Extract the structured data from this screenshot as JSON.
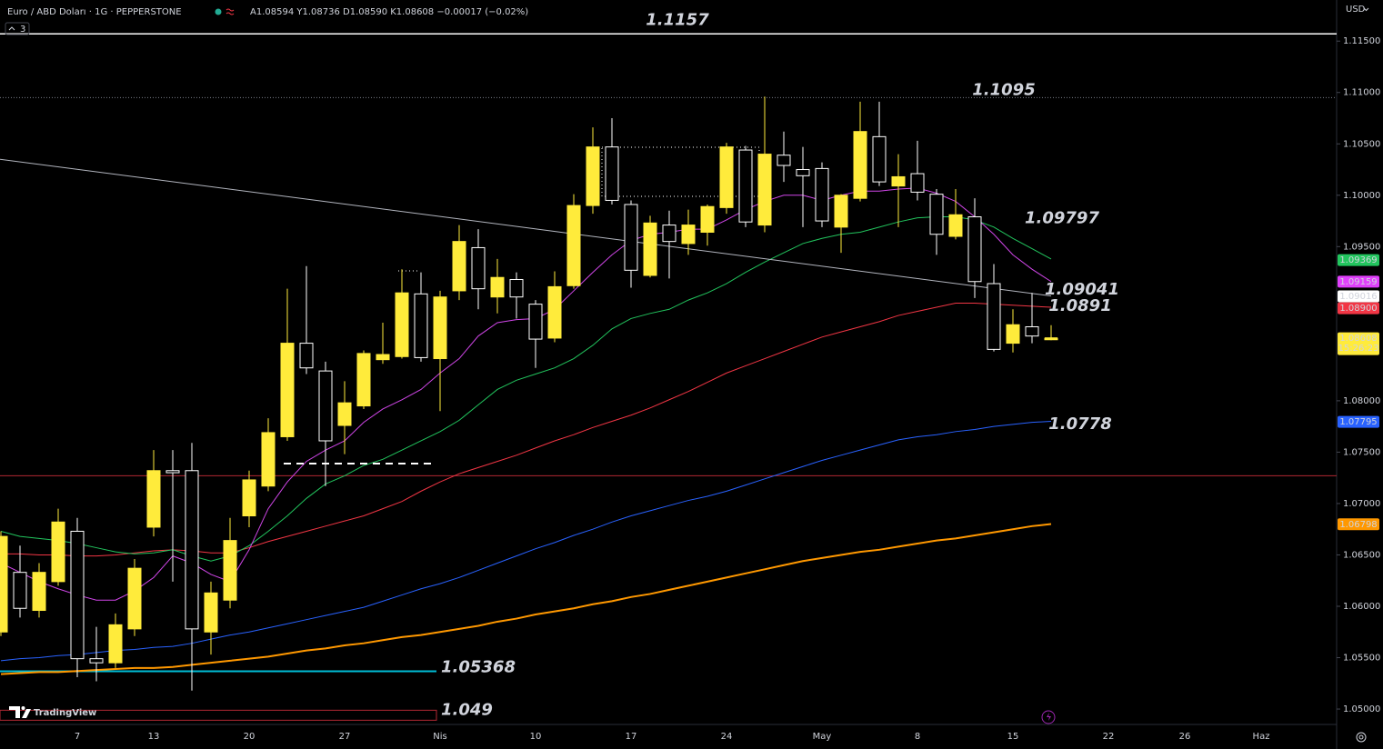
{
  "header": {
    "symbol": "Euro / ABD Doları · 1G · PEPPERSTONE",
    "ohlc": "A1.08594 Y1.08736 D1.08590 K1.08608 −0.00017 (−0.02%)",
    "indicator_count": 3,
    "currency": "USD",
    "logo": "TradingView"
  },
  "chart_data": {
    "type": "candlestick",
    "categories": [
      null,
      null,
      null,
      null,
      "7",
      null,
      null,
      null,
      "13",
      null,
      null,
      null,
      null,
      "20",
      null,
      null,
      null,
      null,
      "27",
      null,
      null,
      null,
      null,
      "Nis",
      null,
      null,
      null,
      null,
      "10",
      null,
      null,
      null,
      null,
      "17",
      null,
      null,
      null,
      null,
      "24",
      null,
      null,
      null,
      null,
      "May",
      null,
      null,
      null,
      null,
      "8",
      null,
      null,
      null,
      null,
      "15",
      null,
      null
    ],
    "future_categories": [
      "22",
      "26",
      "Haz"
    ],
    "open": [
      1.0575,
      1.0633,
      1.0596,
      1.0624,
      1.0673,
      1.0549,
      1.0545,
      1.0578,
      1.0677,
      1.0732,
      1.0732,
      1.0575,
      1.0606,
      1.0688,
      1.0717,
      1.0765,
      1.0856,
      1.0829,
      1.0776,
      1.0795,
      1.084,
      1.0843,
      1.0904,
      1.0841,
      1.0907,
      1.0949,
      1.0901,
      1.0918,
      1.0894,
      1.0861,
      1.0912,
      1.099,
      1.1047,
      1.0991,
      1.0922,
      1.0971,
      1.0953,
      1.0964,
      1.0988,
      1.1044,
      1.0971,
      1.1039,
      1.1025,
      1.1026,
      1.0969,
      1.0997,
      1.1057,
      1.1009,
      1.1021,
      1.1001,
      1.096,
      1.0979,
      1.0914,
      1.0856,
      1.0872,
      1.08594
    ],
    "high": [
      1.0673,
      1.0659,
      1.0642,
      1.0695,
      1.0686,
      1.058,
      1.0593,
      1.0646,
      1.0752,
      1.0752,
      1.0759,
      1.0624,
      1.0686,
      1.0732,
      1.0783,
      1.0909,
      1.0931,
      1.0838,
      1.0819,
      1.0849,
      1.0876,
      1.0928,
      1.0925,
      1.0907,
      1.0971,
      1.0967,
      1.0938,
      1.0925,
      1.0898,
      1.0926,
      1.1001,
      1.1066,
      1.1075,
      1.0995,
      1.098,
      1.0985,
      1.0986,
      1.0991,
      1.1051,
      1.1048,
      1.1096,
      1.1062,
      1.1047,
      1.1032,
      1.1001,
      1.1091,
      1.1091,
      1.104,
      1.1053,
      1.1006,
      1.1006,
      1.0997,
      1.0933,
      1.0889,
      1.0905,
      1.08736
    ],
    "low": [
      1.0571,
      1.0589,
      1.0589,
      1.062,
      1.0531,
      1.0527,
      1.054,
      1.0571,
      1.0668,
      1.0624,
      1.0518,
      1.0553,
      1.0598,
      1.0677,
      1.0712,
      1.0761,
      1.0826,
      1.0717,
      1.0748,
      1.0792,
      1.0836,
      1.0841,
      1.0838,
      1.079,
      1.0898,
      1.0889,
      1.0885,
      1.088,
      1.0832,
      1.0857,
      1.0909,
      1.0982,
      1.0991,
      1.091,
      1.092,
      1.0919,
      1.0942,
      1.0951,
      1.0982,
      1.0969,
      1.0964,
      1.1013,
      1.0969,
      1.0969,
      1.0944,
      1.0994,
      1.1009,
      1.0969,
      1.0995,
      1.0942,
      1.0957,
      1.09,
      1.0848,
      1.0847,
      1.0856,
      1.0859
    ],
    "close": [
      1.0668,
      1.0598,
      1.0633,
      1.0682,
      1.0549,
      1.0545,
      1.0582,
      1.0637,
      1.0732,
      1.073,
      1.0578,
      1.0613,
      1.0664,
      1.0723,
      1.0769,
      1.0856,
      1.0832,
      1.0761,
      1.0798,
      1.0846,
      1.0845,
      1.0905,
      1.0842,
      1.0901,
      1.0955,
      1.0909,
      1.092,
      1.0901,
      1.086,
      1.0911,
      1.099,
      1.1047,
      1.0995,
      1.0927,
      1.0973,
      1.0955,
      1.0971,
      1.0989,
      1.1047,
      1.0974,
      1.104,
      1.1029,
      1.1019,
      1.0975,
      1.1,
      1.1062,
      1.1013,
      1.1018,
      1.1003,
      1.0962,
      1.0981,
      1.0916,
      1.085,
      1.0874,
      1.0863,
      1.08608
    ],
    "up_color": "#ffeb3b",
    "down_color": "#ffffff",
    "moving_averages": [
      {
        "color": "#ff9800",
        "width": 2,
        "values": [
          1.0534,
          1.0535,
          1.0536,
          1.0536,
          1.0537,
          1.0538,
          1.0539,
          1.054,
          1.054,
          1.0541,
          1.0543,
          1.0545,
          1.0547,
          1.0549,
          1.0551,
          1.0554,
          1.0557,
          1.0559,
          1.0562,
          1.0564,
          1.0567,
          1.057,
          1.0572,
          1.0575,
          1.0578,
          1.0581,
          1.0585,
          1.0588,
          1.0592,
          1.0595,
          1.0598,
          1.0602,
          1.0605,
          1.0609,
          1.0612,
          1.0616,
          1.062,
          1.0624,
          1.0628,
          1.0632,
          1.0636,
          1.064,
          1.0644,
          1.0647,
          1.065,
          1.0653,
          1.0655,
          1.0658,
          1.0661,
          1.0664,
          1.0666,
          1.0669,
          1.0672,
          1.0675,
          1.0678,
          1.068
        ]
      },
      {
        "color": "#2962ff",
        "width": 1,
        "values": [
          1.0547,
          1.0549,
          1.055,
          1.0552,
          1.0553,
          1.0555,
          1.0557,
          1.0558,
          1.056,
          1.0561,
          1.0564,
          1.0568,
          1.0572,
          1.0575,
          1.0579,
          1.0583,
          1.0587,
          1.0591,
          1.0595,
          1.0599,
          1.0605,
          1.0611,
          1.0617,
          1.0622,
          1.0628,
          1.0635,
          1.0642,
          1.0649,
          1.0656,
          1.0662,
          1.0669,
          1.0675,
          1.0682,
          1.0688,
          1.0693,
          1.0698,
          1.0703,
          1.0707,
          1.0712,
          1.0718,
          1.0724,
          1.073,
          1.0736,
          1.0742,
          1.0747,
          1.0752,
          1.0757,
          1.0762,
          1.0765,
          1.0767,
          1.077,
          1.0772,
          1.0775,
          1.0777,
          1.0779,
          1.078
        ]
      },
      {
        "color": "#f23645",
        "width": 1,
        "values": [
          1.0651,
          1.0651,
          1.065,
          1.065,
          1.0649,
          1.0649,
          1.065,
          1.0652,
          1.0654,
          1.0655,
          1.0654,
          1.0652,
          1.0652,
          1.0657,
          1.0663,
          1.0668,
          1.0673,
          1.0678,
          1.0683,
          1.0688,
          1.0695,
          1.0702,
          1.0712,
          1.0721,
          1.0729,
          1.0735,
          1.0741,
          1.0747,
          1.0754,
          1.0761,
          1.0767,
          1.0774,
          1.078,
          1.0786,
          1.0793,
          1.0801,
          1.0809,
          1.0818,
          1.0827,
          1.0834,
          1.0841,
          1.0848,
          1.0855,
          1.0862,
          1.0867,
          1.0872,
          1.0877,
          1.0883,
          1.0887,
          1.0891,
          1.0895,
          1.0895,
          1.0894,
          1.0893,
          1.0892,
          1.0891
        ]
      },
      {
        "color": "#22c55e",
        "width": 1,
        "values": [
          1.0673,
          1.0668,
          1.0666,
          1.0664,
          1.0661,
          1.0657,
          1.0653,
          1.0651,
          1.0652,
          1.0655,
          1.0649,
          1.0644,
          1.0649,
          1.0659,
          1.0673,
          1.0688,
          1.0705,
          1.0719,
          1.0727,
          1.0737,
          1.0743,
          1.0752,
          1.0761,
          1.077,
          1.0781,
          1.0796,
          1.0811,
          1.082,
          1.0826,
          1.0832,
          1.0841,
          1.0854,
          1.087,
          1.088,
          1.0885,
          1.0889,
          1.0898,
          1.0905,
          1.0914,
          1.0925,
          1.0935,
          1.0944,
          1.0953,
          1.0958,
          1.0962,
          1.0964,
          1.0969,
          1.0974,
          1.0978,
          1.0979,
          1.0979,
          1.0976,
          1.0969,
          1.0958,
          1.0948,
          1.0938
        ]
      },
      {
        "color": "#d046e8",
        "width": 1,
        "values": [
          1.0642,
          1.0633,
          1.0624,
          1.0617,
          1.0611,
          1.0606,
          1.0606,
          1.0615,
          1.0628,
          1.0649,
          1.0642,
          1.0631,
          1.0624,
          1.0655,
          1.0695,
          1.0721,
          1.0741,
          1.0752,
          1.0761,
          1.0779,
          1.0792,
          1.0801,
          1.0811,
          1.0827,
          1.0841,
          1.0863,
          1.0876,
          1.0879,
          1.088,
          1.0889,
          1.0907,
          1.0925,
          1.0942,
          1.0956,
          1.0962,
          1.0964,
          1.0967,
          1.0967,
          1.0976,
          1.0986,
          1.0994,
          1.1,
          1.1,
          1.0995,
          1.1,
          1.1004,
          1.1004,
          1.1006,
          1.1007,
          1.1002,
          1.0994,
          1.0979,
          1.0962,
          1.0942,
          1.0928,
          1.0916
        ]
      }
    ],
    "trendline": {
      "color": "#b2b5be",
      "values": [
        1.1035,
        1.0902
      ]
    },
    "hlines": [
      {
        "value": 1.0727,
        "color": "#b22833"
      }
    ],
    "annotations": [
      {
        "value": 1.1157,
        "color": "#2962ff",
        "line": "solid",
        "line_color": "#ffffff"
      },
      {
        "value": 1.1095,
        "color": "#2962ff",
        "line": "dotted",
        "line_color": "#787b86"
      },
      {
        "value": 1.09797,
        "color": "#2962ff"
      },
      {
        "value": 1.09041,
        "color": "#2962ff"
      },
      {
        "value": 1.0891,
        "color": "#2962ff"
      },
      {
        "value": 1.0778,
        "color": "#2962ff"
      },
      {
        "value": 1.05368,
        "color": "#26a69a",
        "line": "solid",
        "line_color": "#00bcd4"
      },
      {
        "value": 1.049,
        "color": "#f23645",
        "line": "box",
        "line_color": "#b22833"
      }
    ],
    "ylim": [
      1.0485,
      1.119
    ],
    "yticks": [
      {
        "value": 1.115,
        "label": "1.11500"
      },
      {
        "value": 1.11,
        "label": "1.11000"
      },
      {
        "value": 1.105,
        "label": "1.10500"
      },
      {
        "value": 1.1,
        "label": "1.10000"
      },
      {
        "value": 1.095,
        "label": "1.09500"
      },
      {
        "value": 1.08,
        "label": "1.08000"
      },
      {
        "value": 1.075,
        "label": "1.07500"
      },
      {
        "value": 1.07,
        "label": "1.07000"
      },
      {
        "value": 1.065,
        "label": "1.06500"
      },
      {
        "value": 1.06,
        "label": "1.06000"
      },
      {
        "value": 1.055,
        "label": "1.05500"
      },
      {
        "value": 1.05,
        "label": "1.05000"
      }
    ],
    "grid": false,
    "price_tags": [
      {
        "value": 1.09369,
        "color": "#22c55e",
        "text_color": "#000000"
      },
      {
        "value": 1.09159,
        "color": "#e040fb",
        "text_color": "#ffffff"
      },
      {
        "value": 1.09016,
        "color": "#ffffff",
        "text_color": "#000000"
      },
      {
        "value": 1.089,
        "label": "1.08900",
        "color": "#f23645",
        "text_color": "#ffffff"
      },
      {
        "value": 1.07795,
        "color": "#2962ff",
        "text_color": "#ffffff"
      },
      {
        "value": 1.06798,
        "color": "#ff9800",
        "text_color": "#000000"
      }
    ],
    "last_price": {
      "value": 1.08608,
      "countdown": "15:26:23",
      "color": "#ffeb3b",
      "text_color": "#000000"
    }
  }
}
